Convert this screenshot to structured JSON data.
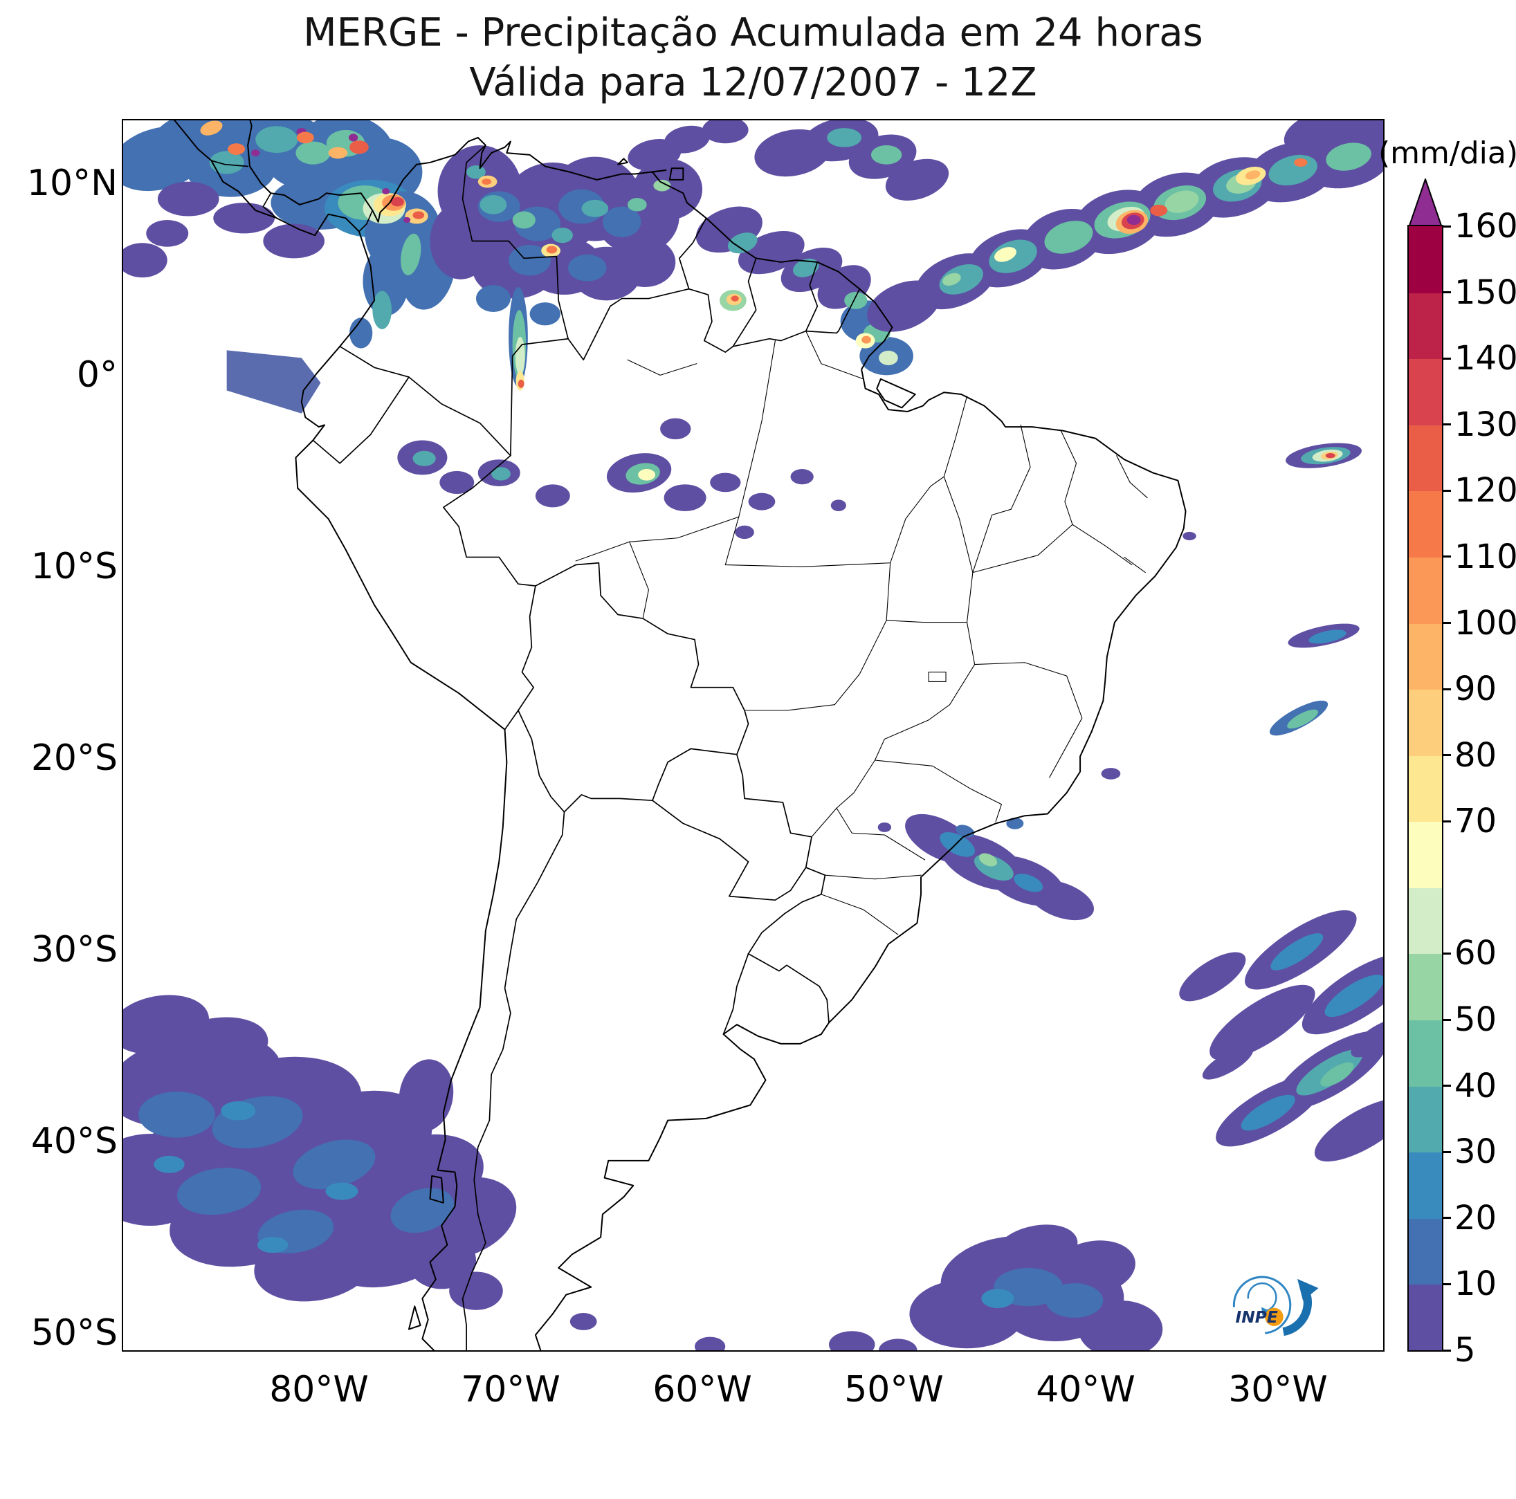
{
  "title": {
    "line1": "MERGE - Precipitação Acumulada em 24 horas",
    "line2": "Válida para 12/07/2007 - 12Z"
  },
  "axes": {
    "y_tick_labels": [
      "10°N",
      "0°",
      "10°S",
      "20°S",
      "30°S",
      "40°S",
      "50°S"
    ],
    "x_tick_labels": [
      "80°W",
      "70°W",
      "60°W",
      "50°W",
      "40°W",
      "30°W"
    ]
  },
  "colorbar": {
    "unit_label": "(mm/dia)",
    "levels": [
      5,
      10,
      20,
      30,
      40,
      50,
      60,
      65,
      70,
      80,
      90,
      100,
      110,
      120,
      130,
      140,
      150,
      160
    ],
    "unlabeled_levels": [
      65
    ],
    "band_colors_bottom_to_top": [
      "#5e4fa2",
      "#4371b2",
      "#3a8bbd",
      "#52a9ae",
      "#6cc1a4",
      "#98d5a4",
      "#d3edc8",
      "#fdfdbe",
      "#fee791",
      "#fdcf7d",
      "#fdb466",
      "#fb9857",
      "#f67a49",
      "#ea5e47",
      "#d8434e",
      "#bd2249",
      "#9e0142"
    ],
    "extend_color": "#8f2d92"
  },
  "map": {
    "flat_patch_color": "#5b6cae",
    "coastline_color": "#000000"
  },
  "logo": {
    "text": "INPE",
    "circle_color": "#2f86c3",
    "arrow_color": "#1a6fae",
    "globe_color": "#f39c12",
    "text_color": "#16336e"
  },
  "chart_data": {
    "type": "heatmap",
    "title": "MERGE - Precipitação Acumulada em 24 horas",
    "subtitle": "Válida para 12/07/2007 - 12Z",
    "units": "mm/dia",
    "colorbar_levels": [
      5,
      10,
      20,
      30,
      40,
      50,
      60,
      65,
      70,
      80,
      90,
      100,
      110,
      120,
      130,
      140,
      150,
      160
    ],
    "colorbar_extend": "above 160",
    "lat_ticks": [
      "10°N",
      "0°",
      "10°S",
      "20°S",
      "30°S",
      "40°S",
      "50°S"
    ],
    "lon_ticks": [
      "80°W",
      "70°W",
      "60°W",
      "50°W",
      "40°W",
      "30°W"
    ],
    "legend_position": "right",
    "grid": false
  }
}
